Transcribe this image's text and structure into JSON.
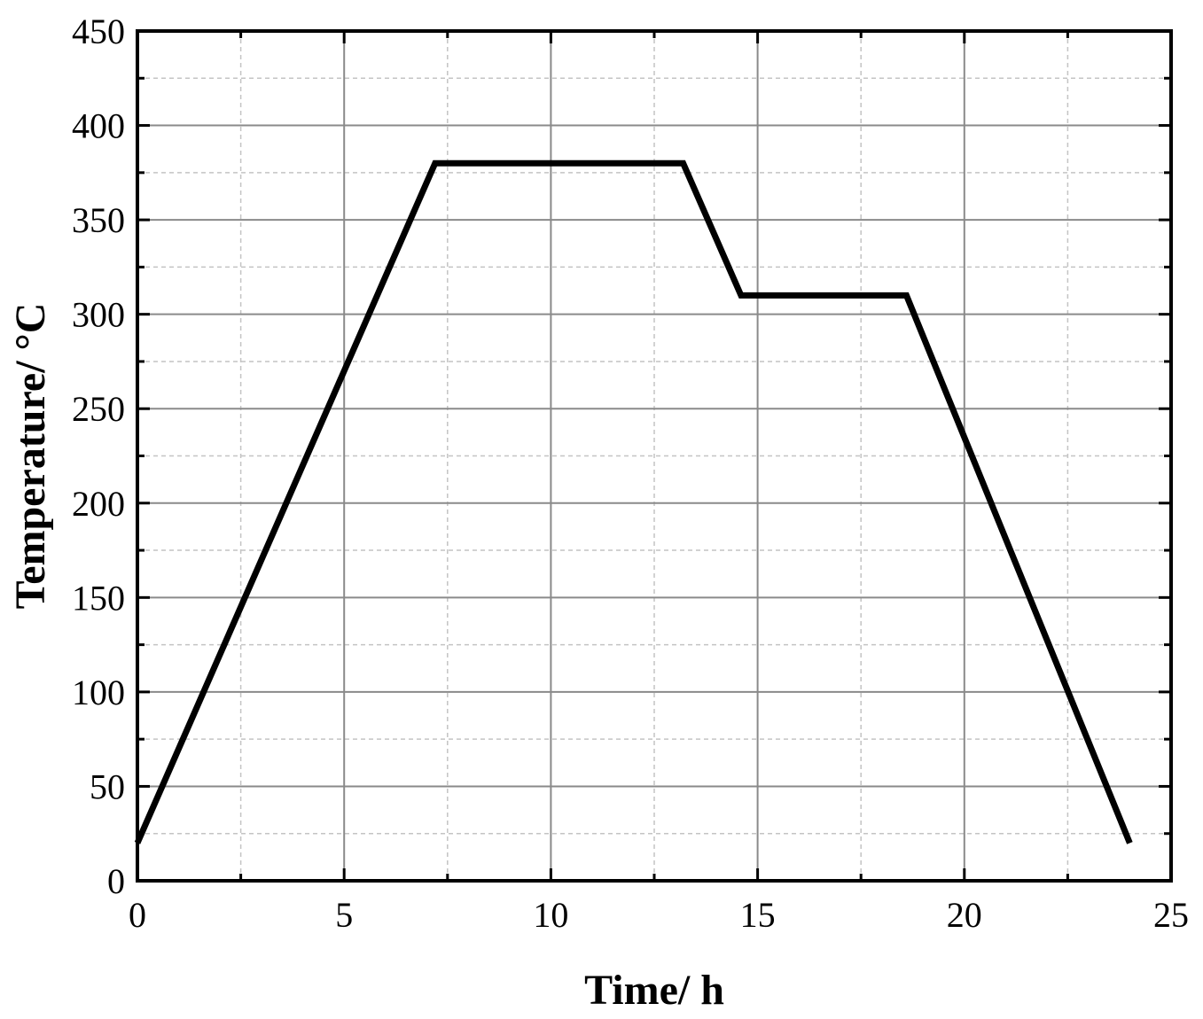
{
  "chart_data": {
    "type": "line",
    "title": "",
    "xlabel": "Time/ h",
    "ylabel": "Temperature/ °C",
    "xlim": [
      0,
      25
    ],
    "ylim": [
      0,
      450
    ],
    "x_ticks": [
      0,
      5,
      10,
      15,
      20,
      25
    ],
    "y_ticks": [
      0,
      50,
      100,
      150,
      200,
      250,
      300,
      350,
      400,
      450
    ],
    "x_minor_step": 2.5,
    "y_minor_step": 25,
    "grid": true,
    "legend": "none",
    "series": [
      {
        "color": "#000000",
        "x": [
          0,
          7.2,
          13.2,
          14.6,
          18.6,
          24
        ],
        "y": [
          20,
          380,
          380,
          310,
          310,
          20
        ]
      }
    ]
  }
}
